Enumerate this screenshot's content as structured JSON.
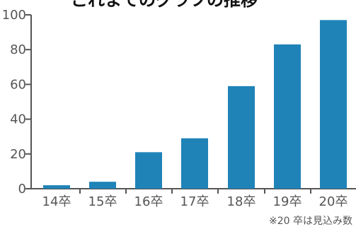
{
  "chart_data": {
    "type": "bar",
    "title": "これまでのグラフの推移",
    "xlabel": "",
    "ylabel": "",
    "ylim": [
      0,
      100
    ],
    "yticks": [
      0,
      20,
      40,
      60,
      80,
      100
    ],
    "categories": [
      "14卒",
      "15卒",
      "16卒",
      "17卒",
      "18卒",
      "19卒",
      "20卒"
    ],
    "values": [
      2,
      4,
      21,
      29,
      59,
      83,
      97
    ],
    "grid": false,
    "legend": "",
    "color": "#1f83b8",
    "note": "※20 卒は見込み数"
  }
}
